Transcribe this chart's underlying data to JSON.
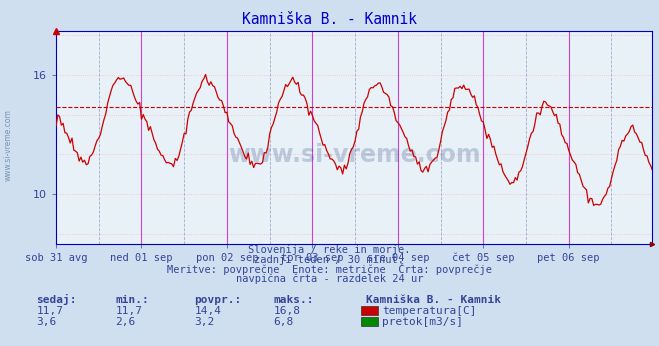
{
  "title": "Kamniška B. - Kamnik",
  "title_color": "#0000cc",
  "bg_color": "#d0dff0",
  "plot_bg_color": "#e8f0f8",
  "x_labels": [
    "sob 31 avg",
    "ned 01 sep",
    "pon 02 sep",
    "tor 03 sep",
    "sre 04 sep",
    "čet 05 sep",
    "pet 06 sep"
  ],
  "y_ticks": [
    10,
    16
  ],
  "y_min": 7.5,
  "y_max": 18.2,
  "avg_temp": 14.4,
  "avg_flow": 3.2,
  "temp_color": "#cc0000",
  "flow_color": "#008800",
  "grid_color_h": "#ffbbbb",
  "vline_color": "#cc44cc",
  "dashed_vline_color": "#aaaacc",
  "hline_avg_color": "#cc0000",
  "watermark": "www.si-vreme.com",
  "subtitle1": "Slovenija / reke in morje.",
  "subtitle2": "zadnji teden / 30 minut.",
  "subtitle3": "Meritve: povprečne  Enote: metrične  Črta: povprečje",
  "subtitle4": "navpična črta - razdelek 24 ur",
  "label_sedaj": "sedaj:",
  "label_min": "min.:",
  "label_povpr": "povpr.:",
  "label_maks": "maks.:",
  "station_name": "Kamniška B. - Kamnik",
  "temp_sedaj": "11,7",
  "temp_min": "11,7",
  "temp_povpr": "14,4",
  "temp_maks": "16,8",
  "flow_sedaj": "3,6",
  "flow_min": "2,6",
  "flow_povpr": "3,2",
  "flow_maks": "6,8",
  "legend_temp": "temperatura[C]",
  "legend_flow": "pretok[m3/s]",
  "text_color": "#334499",
  "n_points": 336
}
